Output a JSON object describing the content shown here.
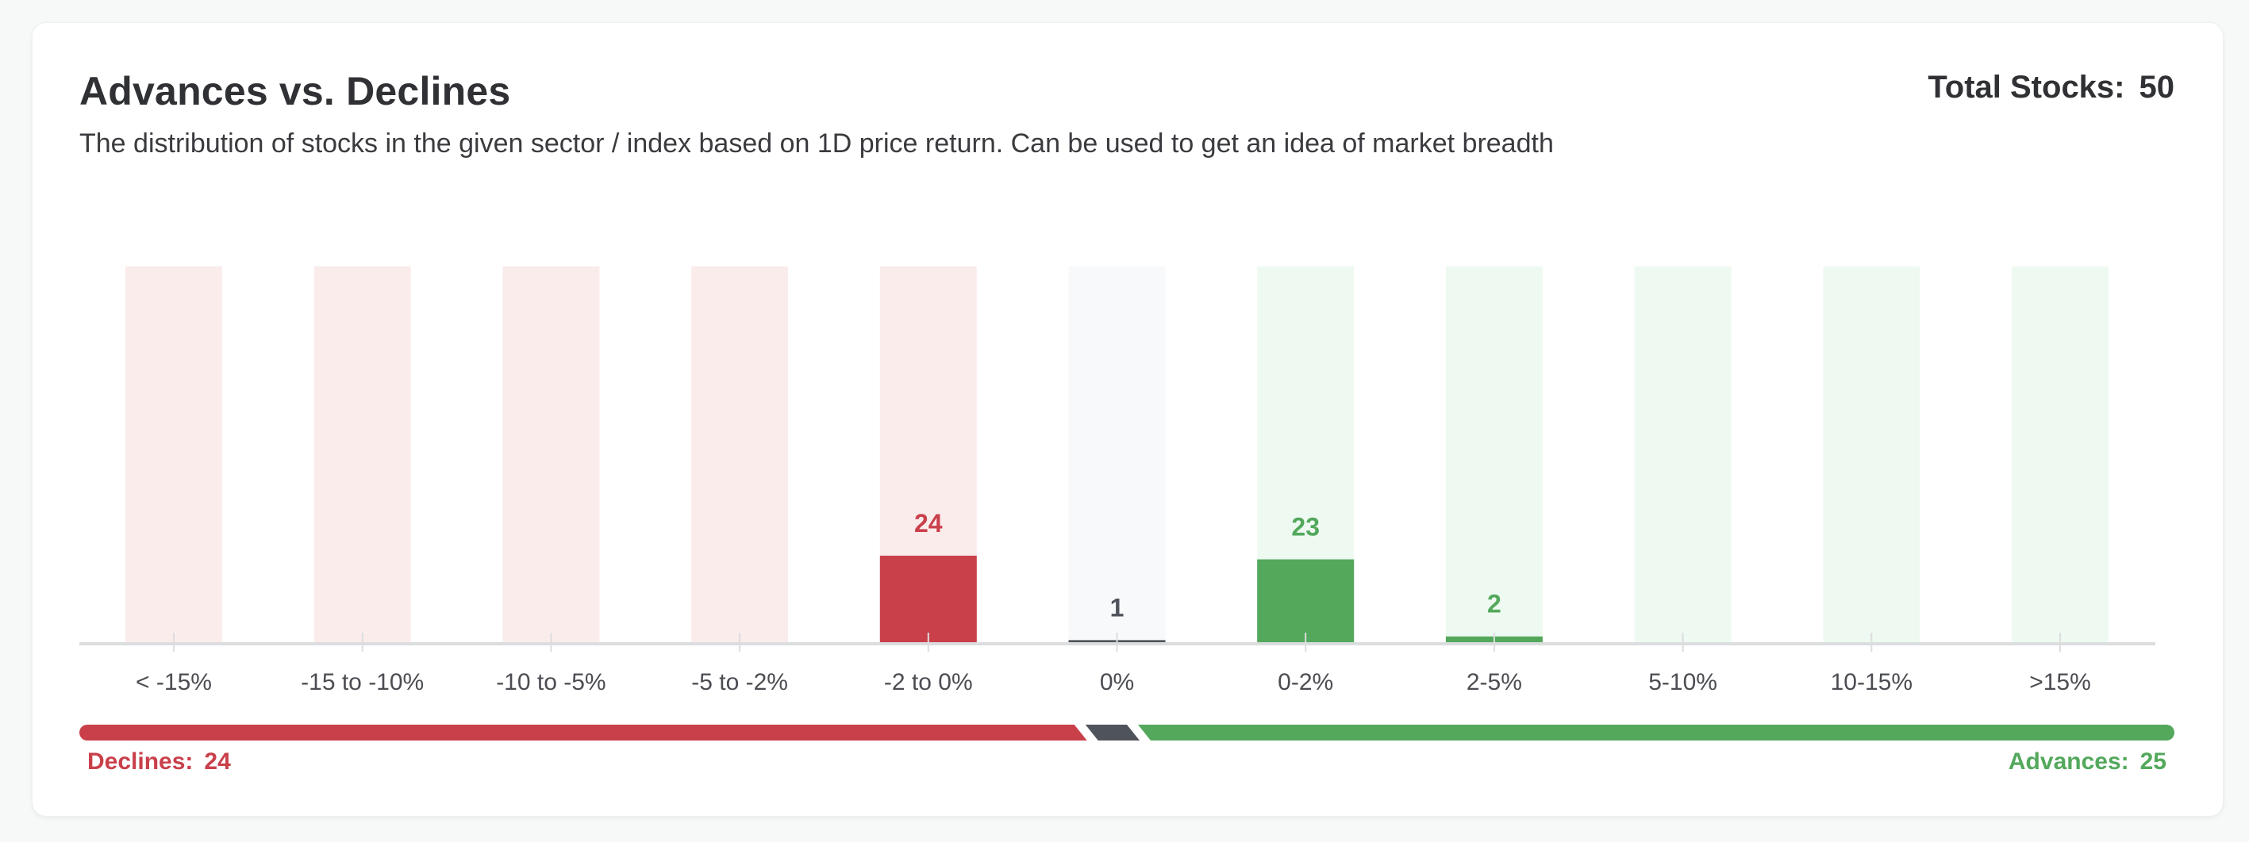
{
  "header": {
    "title": "Advances vs. Declines",
    "subtitle": "The distribution of stocks in the given sector / index based on 1D price return. Can be used to get an idea of market breadth",
    "total_label": "Total Stocks:",
    "total_value": "50"
  },
  "breadth": {
    "declines_label": "Declines:",
    "declines_value": "24",
    "advances_label": "Advances:",
    "advances_value": "25"
  },
  "colors": {
    "decline": "#c9404b",
    "decline_bg": "#fbecec",
    "neutral": "#4f535b",
    "neutral_bg": "#f8f9fb",
    "advance": "#53a85c",
    "advance_bg": "#eefaf1",
    "axis": "#dcdddf"
  },
  "chart_data": {
    "type": "bar",
    "categories": [
      "< -15%",
      "-15 to -10%",
      "-10 to -5%",
      "-5 to -2%",
      "-2 to 0%",
      "0%",
      "0-2%",
      "2-5%",
      "5-10%",
      "10-15%",
      ">15%"
    ],
    "values": [
      0,
      0,
      0,
      0,
      24,
      1,
      23,
      2,
      0,
      0,
      0
    ],
    "category_groups": [
      "decline",
      "decline",
      "decline",
      "decline",
      "decline",
      "neutral",
      "advance",
      "advance",
      "advance",
      "advance",
      "advance"
    ],
    "data_labels": [
      "",
      "",
      "",
      "",
      "24",
      "1",
      "23",
      "2",
      "",
      "",
      ""
    ],
    "ylim": [
      0,
      50
    ],
    "grid": false,
    "legend": "none"
  }
}
